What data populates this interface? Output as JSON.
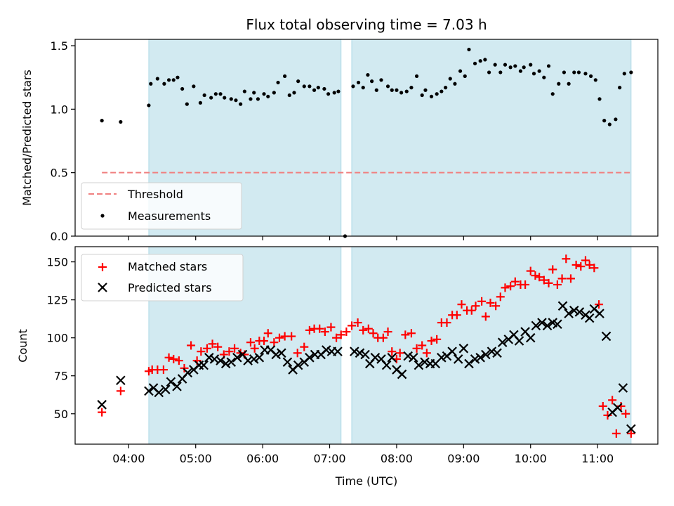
{
  "chart_data": [
    {
      "type": "scatter",
      "title": "Flux total observing time = 7.03 h",
      "xlabel": "",
      "ylabel": "Matched/Predicted stars",
      "xlim": [
        3.2,
        11.9
      ],
      "ylim": [
        0.0,
        1.55
      ],
      "yticks": [
        0.0,
        0.5,
        1.0,
        1.5
      ],
      "ytick_labels": [
        "0.0",
        "0.5",
        "1.0",
        "1.5"
      ],
      "legend": {
        "location": "lower-left",
        "entries": [
          "Threshold",
          "Measurements"
        ]
      },
      "colors": {
        "threshold": "#f08080",
        "measurements": "#000000",
        "shade": "#add8e6"
      },
      "shaded_intervals": [
        [
          4.3,
          7.17
        ],
        [
          7.33,
          11.5
        ]
      ],
      "series": [
        {
          "name": "Threshold",
          "kind": "dashed-line",
          "x": [
            3.6,
            11.5
          ],
          "y": [
            0.5,
            0.5
          ]
        },
        {
          "name": "Measurements",
          "kind": "points",
          "x": [
            3.6,
            3.88,
            4.3,
            4.33,
            4.43,
            4.53,
            4.6,
            4.67,
            4.73,
            4.8,
            4.87,
            4.97,
            5.07,
            5.13,
            5.23,
            5.3,
            5.37,
            5.43,
            5.53,
            5.6,
            5.67,
            5.73,
            5.82,
            5.87,
            5.93,
            6.02,
            6.08,
            6.17,
            6.23,
            6.33,
            6.4,
            6.47,
            6.53,
            6.62,
            6.7,
            6.77,
            6.83,
            6.92,
            6.98,
            7.07,
            7.13,
            7.23,
            7.35,
            7.43,
            7.5,
            7.57,
            7.63,
            7.7,
            7.77,
            7.87,
            7.93,
            8.0,
            8.07,
            8.15,
            8.22,
            8.3,
            8.38,
            8.43,
            8.52,
            8.6,
            8.67,
            8.73,
            8.8,
            8.87,
            8.95,
            9.02,
            9.08,
            9.17,
            9.25,
            9.32,
            9.38,
            9.47,
            9.55,
            9.62,
            9.7,
            9.77,
            9.85,
            9.9,
            10.0,
            10.05,
            10.13,
            10.2,
            10.27,
            10.33,
            10.42,
            10.5,
            10.57,
            10.65,
            10.72,
            10.82,
            10.9,
            10.97,
            11.03,
            11.1,
            11.18,
            11.27,
            11.33,
            11.4,
            11.5
          ],
          "y": [
            0.91,
            0.9,
            1.03,
            1.2,
            1.24,
            1.2,
            1.23,
            1.23,
            1.25,
            1.16,
            1.04,
            1.18,
            1.05,
            1.11,
            1.09,
            1.12,
            1.12,
            1.09,
            1.08,
            1.07,
            1.04,
            1.14,
            1.08,
            1.13,
            1.08,
            1.12,
            1.1,
            1.13,
            1.21,
            1.26,
            1.11,
            1.13,
            1.22,
            1.18,
            1.18,
            1.15,
            1.17,
            1.16,
            1.12,
            1.13,
            1.14,
            0.0,
            1.18,
            1.21,
            1.17,
            1.27,
            1.22,
            1.15,
            1.23,
            1.18,
            1.15,
            1.15,
            1.13,
            1.14,
            1.17,
            1.26,
            1.11,
            1.15,
            1.1,
            1.12,
            1.14,
            1.17,
            1.24,
            1.2,
            1.3,
            1.26,
            1.47,
            1.36,
            1.38,
            1.39,
            1.29,
            1.35,
            1.29,
            1.35,
            1.33,
            1.34,
            1.3,
            1.33,
            1.35,
            1.28,
            1.3,
            1.25,
            1.34,
            1.12,
            1.2,
            1.29,
            1.2,
            1.29,
            1.29,
            1.28,
            1.26,
            1.23,
            1.08,
            0.91,
            0.88,
            0.92,
            1.17,
            1.28,
            1.29
          ]
        }
      ]
    },
    {
      "type": "scatter",
      "title": "",
      "xlabel": "Time (UTC)",
      "ylabel": "Count",
      "xlim": [
        3.2,
        11.9
      ],
      "ylim": [
        30,
        160
      ],
      "xticks": [
        4,
        5,
        6,
        7,
        8,
        9,
        10,
        11
      ],
      "xtick_labels": [
        "04:00",
        "05:00",
        "06:00",
        "07:00",
        "08:00",
        "09:00",
        "10:00",
        "11:00"
      ],
      "yticks": [
        50,
        75,
        100,
        125,
        150
      ],
      "ytick_labels": [
        "50",
        "75",
        "100",
        "125",
        "150"
      ],
      "legend": {
        "location": "top-left",
        "entries": [
          "Matched stars",
          "Predicted stars"
        ]
      },
      "colors": {
        "matched": "#ff0000",
        "predicted": "#000000",
        "shade": "#add8e6"
      },
      "shaded_intervals": [
        [
          4.3,
          7.17
        ],
        [
          7.33,
          11.5
        ]
      ],
      "series": [
        {
          "name": "Matched stars",
          "marker": "plus",
          "x": [
            3.6,
            3.88,
            4.3,
            4.35,
            4.43,
            4.52,
            4.6,
            4.67,
            4.75,
            4.83,
            4.93,
            5.02,
            5.08,
            5.17,
            5.25,
            5.33,
            5.42,
            5.5,
            5.58,
            5.67,
            5.73,
            5.82,
            5.88,
            5.95,
            6.02,
            6.08,
            6.17,
            6.25,
            6.33,
            6.43,
            6.52,
            6.62,
            6.7,
            6.77,
            6.85,
            6.93,
            7.02,
            7.1,
            7.17,
            7.25,
            7.33,
            7.42,
            7.5,
            7.58,
            7.65,
            7.72,
            7.8,
            7.87,
            7.93,
            8.0,
            8.05,
            8.13,
            8.22,
            8.3,
            8.38,
            8.45,
            8.52,
            8.6,
            8.67,
            8.75,
            8.83,
            8.9,
            8.97,
            9.05,
            9.12,
            9.18,
            9.27,
            9.33,
            9.4,
            9.48,
            9.55,
            9.62,
            9.7,
            9.77,
            9.85,
            9.92,
            10.0,
            10.07,
            10.13,
            10.2,
            10.27,
            10.33,
            10.4,
            10.47,
            10.53,
            10.6,
            10.68,
            10.75,
            10.82,
            10.88,
            10.95,
            11.02,
            11.08,
            11.15,
            11.22,
            11.28,
            11.35,
            11.42,
            11.5
          ],
          "y": [
            51,
            65,
            78,
            79,
            79,
            79,
            87,
            86,
            85,
            80,
            95,
            85,
            91,
            93,
            96,
            94,
            89,
            91,
            93,
            90,
            89,
            97,
            93,
            98,
            98,
            103,
            97,
            100,
            101,
            101,
            90,
            94,
            105,
            106,
            106,
            104,
            107,
            100,
            102,
            104,
            108,
            110,
            105,
            106,
            103,
            100,
            100,
            104,
            91,
            86,
            90,
            102,
            103,
            93,
            95,
            90,
            98,
            99,
            110,
            110,
            115,
            115,
            122,
            118,
            118,
            121,
            124,
            114,
            123,
            121,
            127,
            133,
            134,
            137,
            135,
            135,
            144,
            141,
            140,
            138,
            136,
            145,
            135,
            139,
            152,
            139,
            148,
            147,
            151,
            148,
            146,
            122,
            55,
            49,
            59,
            37,
            55,
            50,
            37
          ]
        },
        {
          "name": "Predicted stars",
          "marker": "x",
          "x": [
            3.6,
            3.88,
            4.3,
            4.37,
            4.45,
            4.55,
            4.63,
            4.72,
            4.8,
            4.88,
            4.97,
            5.05,
            5.12,
            5.2,
            5.28,
            5.37,
            5.45,
            5.53,
            5.62,
            5.7,
            5.78,
            5.87,
            5.95,
            6.03,
            6.12,
            6.2,
            6.28,
            6.37,
            6.45,
            6.53,
            6.62,
            6.7,
            6.78,
            6.87,
            6.95,
            7.03,
            7.12,
            7.37,
            7.45,
            7.53,
            7.6,
            7.68,
            7.77,
            7.85,
            7.93,
            8.0,
            8.08,
            8.17,
            8.25,
            8.33,
            8.42,
            8.5,
            8.58,
            8.67,
            8.75,
            8.83,
            8.92,
            9.0,
            9.08,
            9.17,
            9.25,
            9.33,
            9.42,
            9.5,
            9.58,
            9.67,
            9.75,
            9.83,
            9.92,
            10.0,
            10.08,
            10.17,
            10.25,
            10.33,
            10.4,
            10.48,
            10.57,
            10.65,
            10.73,
            10.82,
            10.88,
            10.95,
            11.03,
            11.13,
            11.22,
            11.3,
            11.38,
            11.5
          ],
          "y": [
            56,
            72,
            65,
            67,
            64,
            66,
            71,
            68,
            73,
            77,
            79,
            82,
            82,
            87,
            86,
            85,
            83,
            84,
            87,
            89,
            85,
            86,
            87,
            92,
            92,
            89,
            90,
            84,
            79,
            82,
            84,
            87,
            89,
            89,
            92,
            91,
            91,
            91,
            90,
            89,
            83,
            87,
            86,
            82,
            87,
            79,
            76,
            88,
            87,
            82,
            84,
            83,
            83,
            87,
            88,
            91,
            86,
            93,
            83,
            86,
            87,
            89,
            91,
            90,
            97,
            99,
            102,
            98,
            104,
            100,
            108,
            110,
            108,
            110,
            109,
            121,
            116,
            118,
            117,
            115,
            113,
            119,
            116,
            101,
            51,
            54,
            67,
            40
          ]
        }
      ]
    }
  ]
}
